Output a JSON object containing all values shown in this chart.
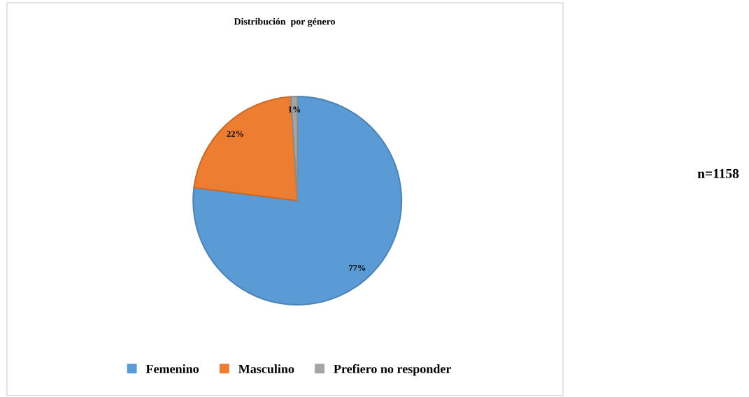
{
  "chart_data": {
    "type": "pie",
    "title": "Distribución  por género",
    "categories": [
      "Femenino",
      "Masculino",
      "Prefiero no responder"
    ],
    "values": [
      77,
      22,
      1
    ],
    "colors": [
      "#5b9bd5",
      "#ed7d31",
      "#a5a5a5"
    ],
    "value_labels": [
      "77%",
      "22%",
      "1%"
    ],
    "legend": "bottom",
    "annotations": [
      "n=1158"
    ]
  }
}
